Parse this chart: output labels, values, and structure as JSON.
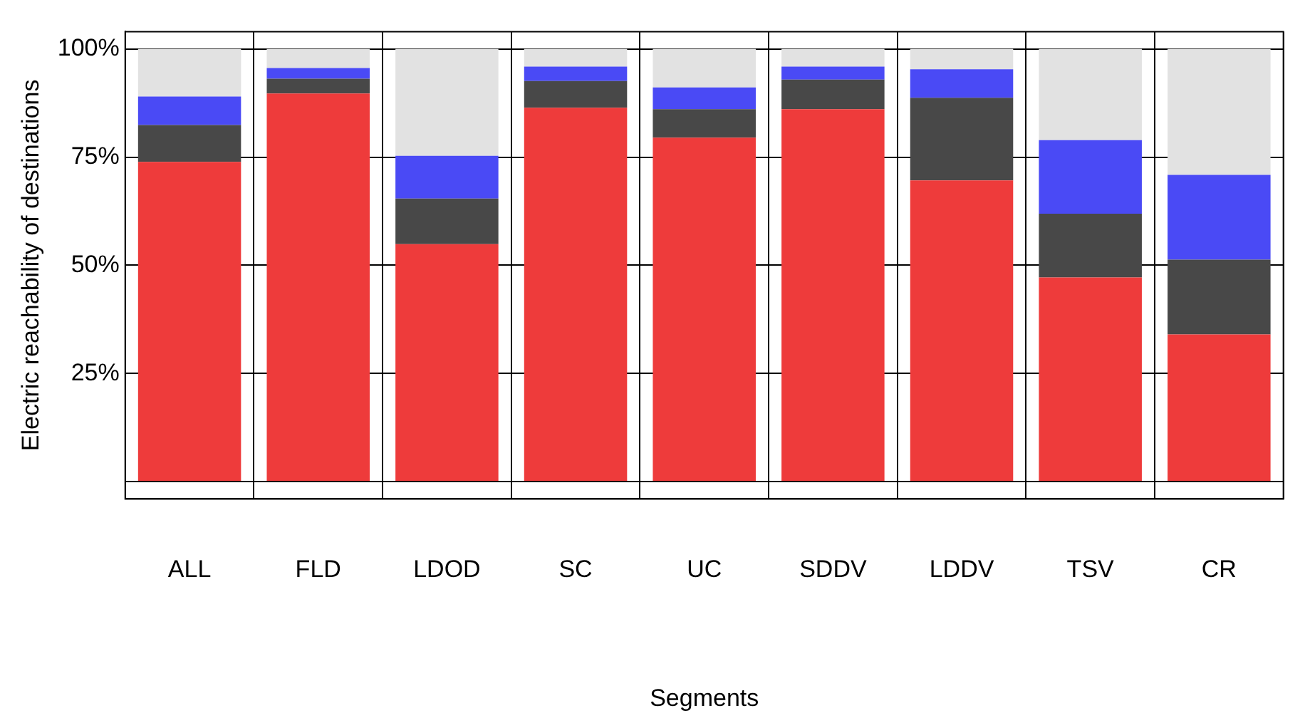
{
  "chart_data": {
    "type": "bar",
    "stacked": true,
    "xlabel": "Segments",
    "ylabel": "Electric reachability of destinations",
    "categories": [
      "ALL",
      "FLD",
      "LDOD",
      "SC",
      "UC",
      "SDDV",
      "LDDV",
      "TSV",
      "CR"
    ],
    "series": [
      {
        "color": "#ee3b3b",
        "values": [
          73.9,
          89.7,
          54.9,
          86.4,
          79.5,
          86.1,
          69.6,
          47.2,
          34.0
        ]
      },
      {
        "color": "#484848",
        "values": [
          8.5,
          3.4,
          10.5,
          6.2,
          6.6,
          6.8,
          19.1,
          14.7,
          17.3
        ]
      },
      {
        "color": "#4a4af5",
        "values": [
          6.6,
          2.5,
          9.9,
          3.3,
          5.0,
          3.0,
          6.6,
          17.0,
          19.6
        ]
      },
      {
        "color": "#e2e2e2",
        "values": [
          11.0,
          4.4,
          24.7,
          4.1,
          8.9,
          4.1,
          4.7,
          21.1,
          29.1
        ]
      }
    ],
    "ylim": [
      -4,
      104
    ],
    "yticks": [
      {
        "value": 0,
        "label": null
      },
      {
        "value": 25,
        "label": "25%"
      },
      {
        "value": 50,
        "label": "50%"
      },
      {
        "value": 75,
        "label": "75%"
      },
      {
        "value": 100,
        "label": "100%"
      }
    ],
    "grid": true,
    "legend": false
  }
}
